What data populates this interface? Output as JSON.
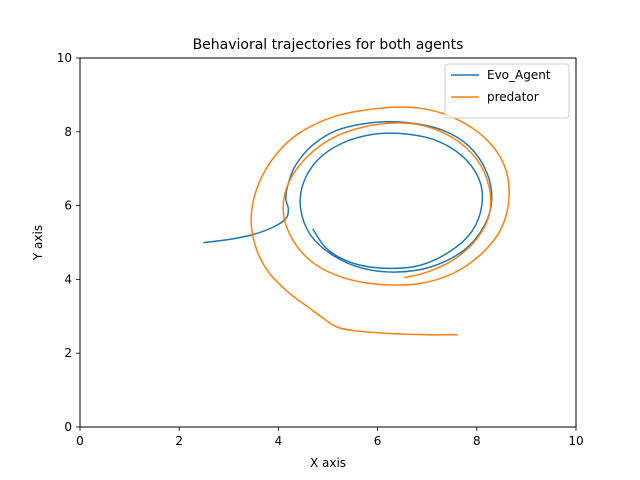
{
  "chart_data": {
    "type": "line",
    "title": "Behavioral trajectories for both agents",
    "xlabel": "X axis",
    "ylabel": "Y axis",
    "xlim": [
      0,
      10
    ],
    "ylim": [
      0,
      10
    ],
    "xticks": [
      0,
      2,
      4,
      6,
      8,
      10
    ],
    "yticks": [
      0,
      2,
      4,
      6,
      8,
      10
    ],
    "grid": false,
    "legend_position": "top-right",
    "series": [
      {
        "name": "Evo_Agent",
        "color": "#1f77b4",
        "points": [
          [
            2.5,
            5.0
          ],
          [
            3.0,
            5.08
          ],
          [
            3.5,
            5.22
          ],
          [
            3.9,
            5.42
          ],
          [
            4.15,
            5.65
          ],
          [
            4.2,
            5.9
          ],
          [
            4.15,
            6.2
          ],
          [
            4.2,
            6.6
          ],
          [
            4.35,
            7.1
          ],
          [
            4.7,
            7.65
          ],
          [
            5.2,
            8.05
          ],
          [
            5.9,
            8.25
          ],
          [
            6.6,
            8.25
          ],
          [
            7.3,
            8.05
          ],
          [
            7.85,
            7.6
          ],
          [
            8.2,
            6.9
          ],
          [
            8.3,
            6.15
          ],
          [
            8.15,
            5.45
          ],
          [
            7.75,
            4.8
          ],
          [
            7.1,
            4.35
          ],
          [
            6.4,
            4.2
          ],
          [
            5.7,
            4.3
          ],
          [
            5.1,
            4.65
          ],
          [
            4.65,
            5.2
          ],
          [
            4.45,
            5.9
          ],
          [
            4.5,
            6.6
          ],
          [
            4.8,
            7.25
          ],
          [
            5.3,
            7.7
          ],
          [
            5.9,
            7.93
          ],
          [
            6.5,
            7.95
          ],
          [
            7.15,
            7.78
          ],
          [
            7.7,
            7.35
          ],
          [
            8.05,
            6.7
          ],
          [
            8.1,
            6.0
          ],
          [
            7.9,
            5.3
          ],
          [
            7.45,
            4.75
          ],
          [
            6.85,
            4.38
          ],
          [
            6.2,
            4.3
          ],
          [
            5.55,
            4.42
          ],
          [
            5.0,
            4.8
          ],
          [
            4.7,
            5.35
          ]
        ]
      },
      {
        "name": "predator",
        "color": "#ff7f0e",
        "points": [
          [
            7.6,
            2.5
          ],
          [
            7.0,
            2.5
          ],
          [
            6.3,
            2.53
          ],
          [
            5.6,
            2.6
          ],
          [
            5.2,
            2.7
          ],
          [
            4.9,
            2.95
          ],
          [
            4.6,
            3.25
          ],
          [
            4.2,
            3.65
          ],
          [
            3.8,
            4.2
          ],
          [
            3.55,
            4.85
          ],
          [
            3.45,
            5.6
          ],
          [
            3.55,
            6.4
          ],
          [
            3.85,
            7.2
          ],
          [
            4.35,
            7.9
          ],
          [
            5.1,
            8.4
          ],
          [
            6.0,
            8.63
          ],
          [
            6.8,
            8.65
          ],
          [
            7.5,
            8.4
          ],
          [
            8.15,
            7.85
          ],
          [
            8.55,
            7.1
          ],
          [
            8.65,
            6.25
          ],
          [
            8.5,
            5.4
          ],
          [
            8.1,
            4.7
          ],
          [
            7.5,
            4.15
          ],
          [
            6.8,
            3.88
          ],
          [
            6.0,
            3.87
          ],
          [
            5.3,
            4.05
          ],
          [
            4.7,
            4.45
          ],
          [
            4.3,
            5.05
          ],
          [
            4.1,
            5.8
          ],
          [
            4.2,
            6.6
          ],
          [
            4.6,
            7.35
          ],
          [
            5.2,
            7.9
          ],
          [
            6.0,
            8.2
          ],
          [
            6.8,
            8.2
          ],
          [
            7.5,
            7.85
          ],
          [
            8.0,
            7.25
          ],
          [
            8.25,
            6.5
          ],
          [
            8.25,
            5.75
          ],
          [
            8.0,
            5.1
          ],
          [
            7.55,
            4.55
          ],
          [
            7.0,
            4.2
          ],
          [
            6.55,
            4.05
          ]
        ]
      }
    ]
  }
}
